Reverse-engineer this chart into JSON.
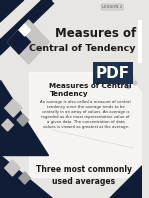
{
  "bg_color": "#e8e6e3",
  "title_line1": "Measures of",
  "title_line2": "Central of Tendency",
  "lesson_label": "LESSON 2",
  "section_title": "Measures of Central\nTendency",
  "body_text": "An average is also called a measure of central\ntendency since the average tends to be\ncentrally in an array of values. An average is\nregarded as the most representative value of\na given data. The concentration of data\nvalues is viewed as greatest at the average.",
  "footer_text": "Three most commonly\nused averages",
  "dark_color": "#1c2b45",
  "darker_color": "#111d36",
  "gray_color": "#9e9e9e",
  "light_gray": "#c8c6c4",
  "white": "#ffffff",
  "pdf_label": "PDF",
  "pdf_bg": "#1c3050"
}
